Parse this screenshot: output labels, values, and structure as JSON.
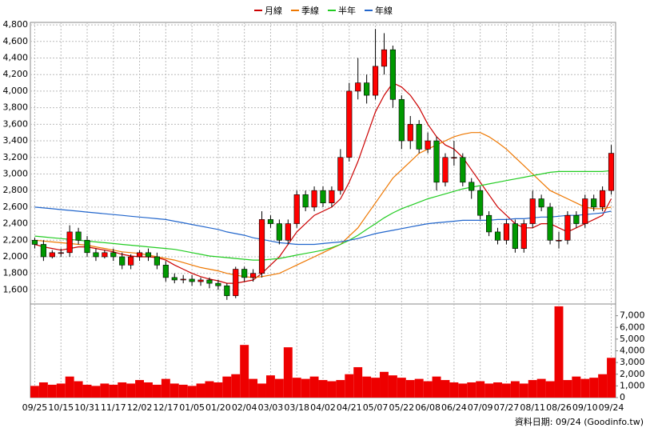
{
  "chart_data": {
    "type": "candlestick",
    "categories": [
      "09/25",
      null,
      null,
      "10/15",
      null,
      null,
      "10/31",
      null,
      null,
      "11/17",
      null,
      null,
      "12/02",
      null,
      null,
      "12/17",
      null,
      null,
      "01/05",
      null,
      null,
      "01/20",
      null,
      null,
      "02/04",
      null,
      null,
      "03/03",
      null,
      null,
      "03/18",
      null,
      null,
      "04/02",
      null,
      null,
      "04/21",
      null,
      null,
      "05/07",
      null,
      null,
      "05/22",
      null,
      null,
      "06/08",
      null,
      null,
      "06/24",
      null,
      null,
      "07/09",
      null,
      null,
      "07/27",
      null,
      null,
      "08/11",
      null,
      null,
      "08/26",
      null,
      null,
      "09/10",
      null,
      null,
      "09/24"
    ],
    "open": [
      2200,
      2150,
      2000,
      2050,
      2050,
      2300,
      2200,
      2050,
      2000,
      2050,
      2000,
      1900,
      2000,
      2050,
      2000,
      1900,
      1750,
      1720,
      1730,
      1700,
      1720,
      1680,
      1650,
      1530,
      1850,
      1750,
      1800,
      2450,
      2400,
      2200,
      2400,
      2750,
      2600,
      2800,
      2650,
      2800,
      3200,
      4000,
      4100,
      3950,
      4300,
      4500,
      3900,
      3400,
      3600,
      3300,
      3400,
      2900,
      3200,
      3200,
      2900,
      2800,
      2500,
      2300,
      2200,
      2400,
      2100,
      2400,
      2700,
      2600,
      2200,
      2200,
      2500,
      2400,
      2700,
      2600,
      2800
    ],
    "high": [
      2230,
      2200,
      2080,
      2100,
      2380,
      2350,
      2250,
      2100,
      2080,
      2100,
      2050,
      2030,
      2080,
      2100,
      2050,
      1950,
      1800,
      1780,
      1780,
      1750,
      1750,
      1720,
      1680,
      1880,
      1880,
      1850,
      2550,
      2500,
      2450,
      2450,
      2800,
      2800,
      2850,
      2850,
      2850,
      3300,
      4100,
      4400,
      4200,
      4750,
      4700,
      4550,
      3950,
      3700,
      3650,
      3500,
      3450,
      3250,
      3400,
      3250,
      2950,
      2850,
      2550,
      2350,
      2450,
      2450,
      2450,
      2800,
      2750,
      2650,
      2300,
      2550,
      2550,
      2750,
      2750,
      2850,
      3350
    ],
    "low": [
      2100,
      1950,
      1980,
      2000,
      2000,
      2150,
      2000,
      1950,
      1980,
      1950,
      1850,
      1850,
      1950,
      1950,
      1850,
      1700,
      1680,
      1680,
      1650,
      1650,
      1620,
      1600,
      1480,
      1500,
      1700,
      1700,
      1750,
      2350,
      2150,
      2150,
      2350,
      2550,
      2550,
      2600,
      2600,
      2750,
      3150,
      3900,
      3850,
      3900,
      4200,
      3800,
      3300,
      3300,
      3250,
      3250,
      2800,
      2850,
      3100,
      2850,
      2700,
      2450,
      2250,
      2150,
      2150,
      2050,
      2050,
      2350,
      2550,
      2150,
      2100,
      2150,
      2350,
      2350,
      2550,
      2550,
      2750
    ],
    "close": [
      2150,
      2000,
      2050,
      2050,
      2300,
      2200,
      2050,
      2000,
      2050,
      2000,
      1900,
      2000,
      2050,
      2000,
      1900,
      1750,
      1720,
      1730,
      1700,
      1720,
      1680,
      1650,
      1530,
      1850,
      1750,
      1800,
      2450,
      2400,
      2200,
      2400,
      2750,
      2600,
      2800,
      2650,
      2800,
      3200,
      4000,
      4100,
      3950,
      4300,
      4500,
      3900,
      3400,
      3600,
      3300,
      3400,
      2900,
      3200,
      3200,
      2900,
      2800,
      2500,
      2300,
      2200,
      2400,
      2100,
      2400,
      2700,
      2600,
      2200,
      2200,
      2500,
      2400,
      2700,
      2600,
      2800,
      3250
    ],
    "up_color": "#ff0000",
    "down_color": "#009900",
    "series": [
      {
        "name": "月線",
        "color": "#cc0000",
        "values": [
          2150,
          2120,
          2100,
          2080,
          2100,
          2120,
          2120,
          2100,
          2080,
          2060,
          2030,
          2010,
          2000,
          2000,
          1990,
          1960,
          1900,
          1850,
          1800,
          1760,
          1730,
          1710,
          1680,
          1680,
          1700,
          1720,
          1800,
          1900,
          2000,
          2150,
          2300,
          2400,
          2500,
          2550,
          2600,
          2700,
          2900,
          3150,
          3450,
          3750,
          3950,
          4100,
          4050,
          3950,
          3800,
          3600,
          3450,
          3350,
          3300,
          3200,
          3050,
          2900,
          2750,
          2600,
          2500,
          2400,
          2350,
          2350,
          2400,
          2400,
          2350,
          2300,
          2350,
          2400,
          2450,
          2500,
          2700
        ]
      },
      {
        "name": "季線",
        "color": "#ee7700",
        "values": [
          2200,
          2190,
          2180,
          2170,
          2160,
          2150,
          2140,
          2120,
          2100,
          2080,
          2060,
          2050,
          2040,
          2020,
          2000,
          1980,
          1960,
          1930,
          1900,
          1870,
          1850,
          1830,
          1800,
          1780,
          1760,
          1750,
          1760,
          1780,
          1800,
          1850,
          1900,
          1950,
          2000,
          2050,
          2100,
          2150,
          2250,
          2350,
          2500,
          2650,
          2800,
          2950,
          3050,
          3150,
          3250,
          3300,
          3350,
          3400,
          3450,
          3480,
          3500,
          3500,
          3450,
          3380,
          3300,
          3200,
          3100,
          3000,
          2900,
          2800,
          2750,
          2700,
          2650,
          2600,
          2580,
          2580,
          2600
        ]
      },
      {
        "name": "半年",
        "color": "#22cc22",
        "values": [
          2250,
          2240,
          2230,
          2220,
          2210,
          2200,
          2190,
          2180,
          2170,
          2160,
          2150,
          2140,
          2130,
          2120,
          2110,
          2100,
          2090,
          2070,
          2050,
          2030,
          2010,
          2000,
          1990,
          1980,
          1970,
          1960,
          1960,
          1970,
          1980,
          2000,
          2020,
          2040,
          2060,
          2080,
          2110,
          2150,
          2200,
          2260,
          2330,
          2400,
          2470,
          2530,
          2580,
          2620,
          2660,
          2700,
          2730,
          2760,
          2790,
          2820,
          2840,
          2860,
          2880,
          2900,
          2920,
          2940,
          2960,
          2980,
          3000,
          3020,
          3030,
          3030,
          3030,
          3030,
          3030,
          3030,
          3040
        ]
      },
      {
        "name": "年線",
        "color": "#2266cc",
        "values": [
          2600,
          2590,
          2580,
          2570,
          2560,
          2550,
          2540,
          2530,
          2520,
          2510,
          2500,
          2490,
          2480,
          2470,
          2460,
          2450,
          2430,
          2410,
          2390,
          2370,
          2350,
          2330,
          2300,
          2280,
          2260,
          2230,
          2210,
          2190,
          2170,
          2160,
          2150,
          2150,
          2150,
          2160,
          2170,
          2180,
          2200,
          2220,
          2250,
          2280,
          2300,
          2320,
          2340,
          2360,
          2380,
          2400,
          2410,
          2420,
          2430,
          2440,
          2440,
          2440,
          2440,
          2450,
          2450,
          2460,
          2460,
          2470,
          2480,
          2480,
          2490,
          2500,
          2500,
          2510,
          2520,
          2530,
          2550
        ]
      }
    ],
    "ylim": [
      1430,
      4830
    ],
    "yticks": [
      {
        "value": 1600,
        "label": "1,600"
      },
      {
        "value": 1800,
        "label": "1,800"
      },
      {
        "value": 2000,
        "label": "2,000"
      },
      {
        "value": 2200,
        "label": "2,200"
      },
      {
        "value": 2400,
        "label": "2,400"
      },
      {
        "value": 2600,
        "label": "2,600"
      },
      {
        "value": 2800,
        "label": "2,800"
      },
      {
        "value": 3000,
        "label": "3,000"
      },
      {
        "value": 3200,
        "label": "3,200"
      },
      {
        "value": 3400,
        "label": "3,400"
      },
      {
        "value": 3600,
        "label": "3,600"
      },
      {
        "value": 3800,
        "label": "3,800"
      },
      {
        "value": 4000,
        "label": "4,000"
      },
      {
        "value": 4200,
        "label": "4,200"
      },
      {
        "value": 4400,
        "label": "4,400"
      },
      {
        "value": 4600,
        "label": "4,600"
      },
      {
        "value": 4800,
        "label": "4,800"
      }
    ],
    "volume": [
      1000,
      1300,
      1100,
      1200,
      1800,
      1400,
      1100,
      1000,
      1200,
      1100,
      1300,
      1200,
      1500,
      1300,
      1100,
      1600,
      1200,
      1100,
      1000,
      1200,
      1400,
      1300,
      1800,
      2000,
      4500,
      1600,
      1200,
      1900,
      1600,
      4300,
      1700,
      1600,
      1800,
      1500,
      1400,
      1500,
      2000,
      2600,
      1800,
      1700,
      2200,
      1900,
      1700,
      1500,
      1600,
      1400,
      1800,
      1500,
      1300,
      1200,
      1300,
      1400,
      1200,
      1300,
      1200,
      1400,
      1200,
      1500,
      1600,
      1400,
      7800,
      1500,
      1800,
      1600,
      1700,
      2000,
      3400
    ],
    "volume_color": "#ee0000",
    "y2lim": [
      0,
      8000
    ],
    "y2ticks": [
      0,
      {
        "value": 1000,
        "label": "1,000"
      },
      {
        "value": 2000,
        "label": "2,000"
      },
      {
        "value": 3000,
        "label": "3,000"
      },
      {
        "value": 4000,
        "label": "4,000"
      },
      {
        "value": 5000,
        "label": "5,000"
      },
      {
        "value": 6000,
        "label": "6,000"
      },
      {
        "value": 7000,
        "label": "7,000"
      }
    ],
    "grid": true,
    "source": "資料日期: 09/24 (Goodinfo.tw)"
  }
}
